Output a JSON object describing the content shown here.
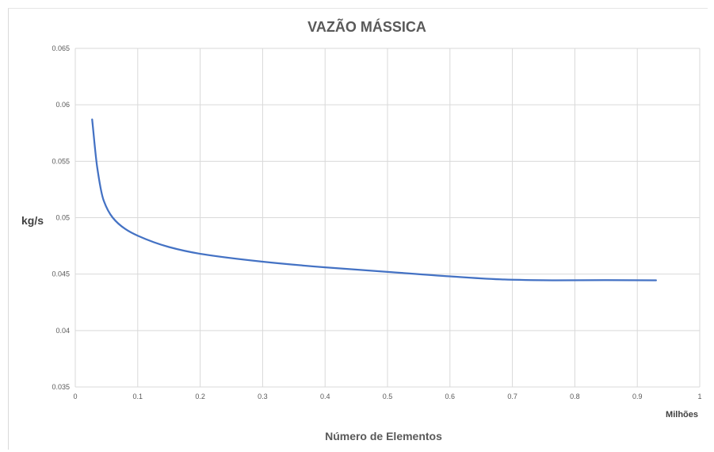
{
  "chart_data": {
    "type": "line",
    "title": "VAZÃO MÁSSICA",
    "xlabel": "Número de Elementos",
    "ylabel": "kg/s",
    "x_display_units": "Milhões",
    "xlim": [
      0,
      1
    ],
    "ylim": [
      0.035,
      0.065
    ],
    "x_ticks": [
      0,
      0.1,
      0.2,
      0.3,
      0.4,
      0.5,
      0.6,
      0.7,
      0.8,
      0.9,
      1
    ],
    "x_tick_labels": [
      "0",
      "0.1",
      "0.2",
      "0.3",
      "0.4",
      "0.5",
      "0.6",
      "0.7",
      "0.8",
      "0.9",
      "1"
    ],
    "y_ticks": [
      0.035,
      0.04,
      0.045,
      0.05,
      0.055,
      0.06,
      0.065
    ],
    "y_tick_labels": [
      "0.035",
      "0.04",
      "0.045",
      "0.05",
      "0.055",
      "0.06",
      "0.065"
    ],
    "grid": true,
    "legend": "none",
    "series": [
      {
        "color": "#4472c4",
        "x": [
          0.027,
          0.035,
          0.045,
          0.06,
          0.08,
          0.1,
          0.15,
          0.2,
          0.3,
          0.4,
          0.5,
          0.6,
          0.7,
          0.77,
          0.85,
          0.93
        ],
        "y": [
          0.0587,
          0.0545,
          0.0516,
          0.05,
          0.049,
          0.0484,
          0.0474,
          0.0468,
          0.0461,
          0.0456,
          0.0452,
          0.0448,
          0.0445,
          0.04445,
          0.04447,
          0.04445
        ]
      }
    ]
  }
}
